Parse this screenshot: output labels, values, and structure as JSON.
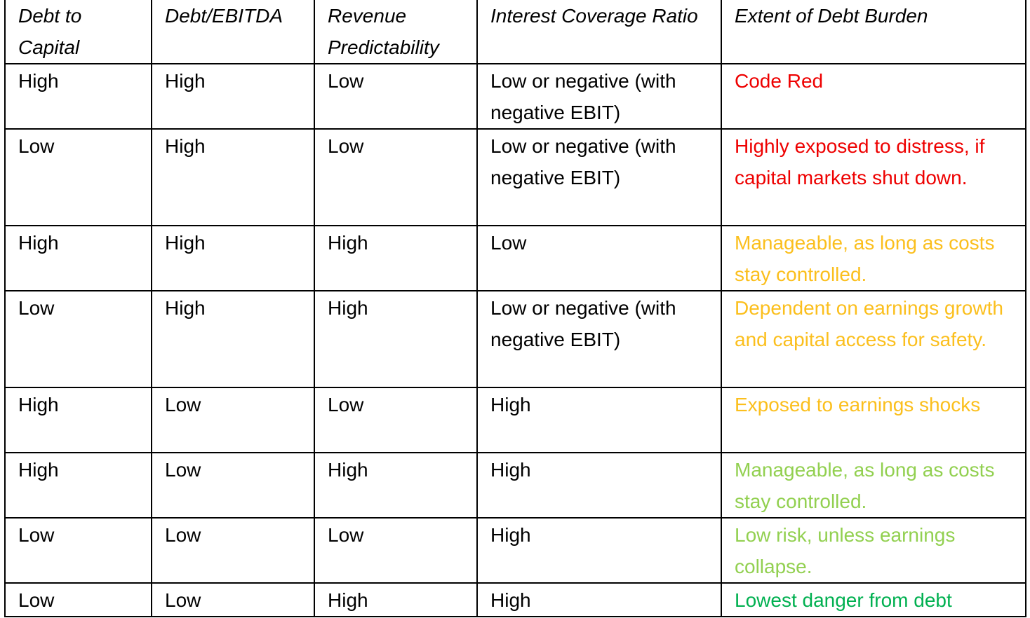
{
  "table": {
    "headers": [
      "Debt to Capital",
      "Debt/EBITDA",
      "Revenue Predictability",
      "Interest Coverage Ratio",
      "Extent of Debt Burden"
    ],
    "rows": [
      [
        "High",
        "High",
        "Low",
        "Low or negative (with negative EBIT)",
        "Code Red"
      ],
      [
        "Low",
        "High",
        "Low",
        "Low or negative (with negative EBIT)",
        "Highly exposed to distress, if capital markets shut down."
      ],
      [
        "High",
        "High",
        "High",
        "Low",
        "Manageable, as long as costs stay controlled."
      ],
      [
        "Low",
        "High",
        "High",
        "Low or negative (with negative EBIT)",
        "Dependent on earnings growth and capital access for safety."
      ],
      [
        "High",
        "Low",
        "Low",
        "High",
        "Exposed to earnings shocks"
      ],
      [
        "High",
        "Low",
        "High",
        "High",
        "Manageable, as long as costs stay controlled."
      ],
      [
        "Low",
        "Low",
        "Low",
        "High",
        "Low risk, unless earnings collapse."
      ],
      [
        "Low",
        "Low",
        "High",
        "High",
        "Lowest danger from debt"
      ]
    ],
    "burden_colors": [
      "#ee0000",
      "#ee0000",
      "#fbbf1d",
      "#fbbf1d",
      "#fbbf1d",
      "#92d050",
      "#92d050",
      "#00b050"
    ]
  }
}
